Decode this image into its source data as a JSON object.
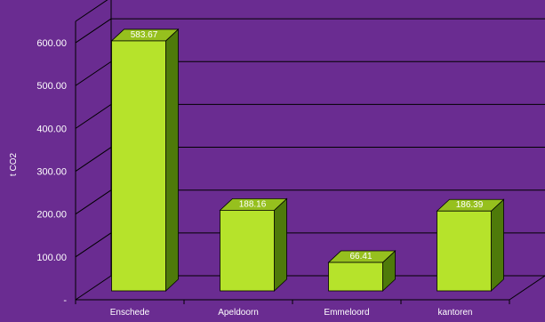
{
  "chart_data": {
    "type": "bar",
    "title": "",
    "xlabel": "",
    "ylabel": "t CO2",
    "categories": [
      "Enschede",
      "Apeldoorn",
      "Emmeloord",
      "kantoren"
    ],
    "values": [
      583.67,
      188.16,
      66.41,
      186.39
    ],
    "value_labels": [
      "583.67",
      "188.16",
      "66.41",
      "186.39"
    ],
    "ylim": [
      0,
      650
    ],
    "yticks": [
      0,
      100,
      200,
      300,
      400,
      500,
      600
    ],
    "ytick_labels": [
      "-",
      "100.00",
      "200.00",
      "300.00",
      "400.00",
      "500.00",
      "600.00"
    ],
    "grid": true,
    "style": "3d",
    "colors": {
      "background": "#6a2c91",
      "bar_front": "#b6e32b",
      "bar_side": "#4e7a0a",
      "bar_top": "#96c01e",
      "gridline": "#000000",
      "text": "#ffffff"
    }
  }
}
